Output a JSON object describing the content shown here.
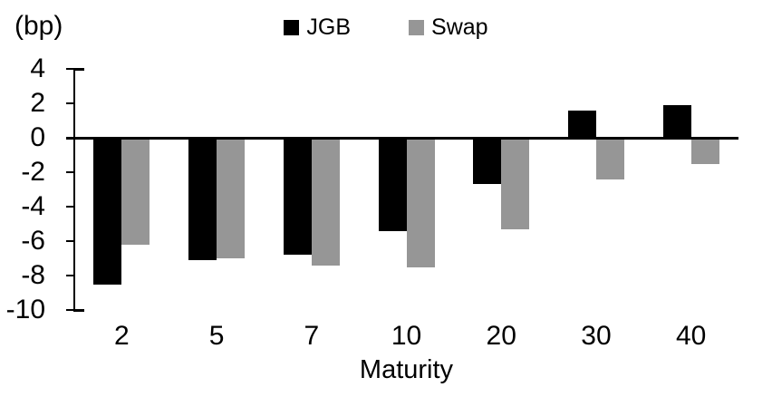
{
  "chart_data": {
    "type": "bar",
    "y_unit_label": "(bp)",
    "xlabel": "Maturity",
    "ylabel": "",
    "categories": [
      "2",
      "5",
      "7",
      "10",
      "20",
      "30",
      "40"
    ],
    "series": [
      {
        "name": "JGB",
        "color": "#000000",
        "values": [
          -8.5,
          -7.1,
          -6.8,
          -5.4,
          -2.7,
          1.6,
          1.9
        ]
      },
      {
        "name": "Swap",
        "color": "#969696",
        "values": [
          -6.2,
          -7.0,
          -7.4,
          -7.5,
          -5.3,
          -2.4,
          -1.5
        ]
      }
    ],
    "ylim": [
      4,
      -10
    ],
    "yticks": [
      4,
      2,
      0,
      -2,
      -4,
      -6,
      -8,
      -10
    ],
    "grid": "off",
    "legend_position": "top-center",
    "axis_color": "#000000"
  }
}
